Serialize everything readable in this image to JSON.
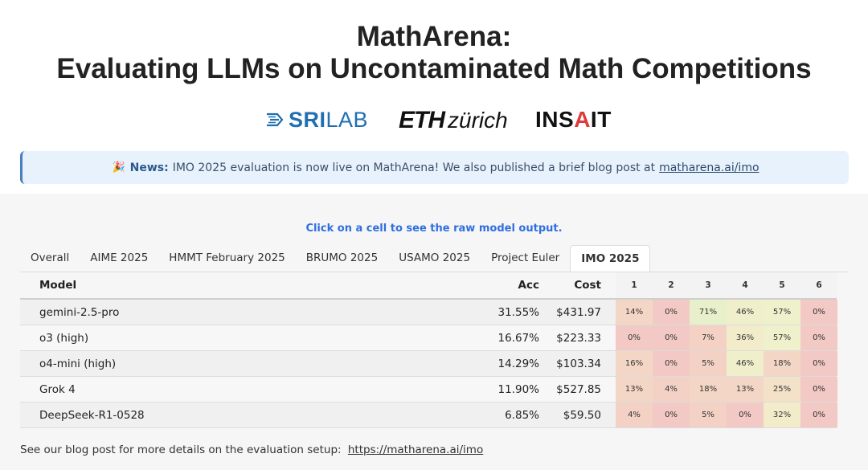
{
  "title_line1": "MathArena:",
  "title_line2": "Evaluating LLMs on Uncontaminated Math Competitions",
  "logos": {
    "sri_bold": "SRI",
    "sri_rest": "LAB",
    "eth_bold": "ETH",
    "eth_rest": "zürich",
    "insait_a": "INS",
    "insait_b": "A",
    "insait_c": "IT"
  },
  "news": {
    "emoji": "🎉",
    "label": "News:",
    "text": "IMO 2025 evaluation is now live on MathArena! We also published a brief blog post at",
    "link": "matharena.ai/imo"
  },
  "hint": "Click on a cell to see the raw model output.",
  "tabs": [
    "Overall",
    "AIME 2025",
    "HMMT February 2025",
    "BRUMO 2025",
    "USAMO 2025",
    "Project Euler",
    "IMO 2025"
  ],
  "active_tab": "IMO 2025",
  "table": {
    "headers": {
      "model": "Model",
      "acc": "Acc",
      "cost": "Cost",
      "problems": [
        "1",
        "2",
        "3",
        "4",
        "5",
        "6"
      ]
    },
    "rows": [
      {
        "model": "gemini-2.5-pro",
        "acc": "31.55%",
        "cost": "$431.97",
        "scores": [
          "14%",
          "0%",
          "71%",
          "46%",
          "57%",
          "0%"
        ]
      },
      {
        "model": "o3 (high)",
        "acc": "16.67%",
        "cost": "$223.33",
        "scores": [
          "0%",
          "0%",
          "7%",
          "36%",
          "57%",
          "0%"
        ]
      },
      {
        "model": "o4-mini (high)",
        "acc": "14.29%",
        "cost": "$103.34",
        "scores": [
          "16%",
          "0%",
          "5%",
          "46%",
          "18%",
          "0%"
        ]
      },
      {
        "model": "Grok 4",
        "acc": "11.90%",
        "cost": "$527.85",
        "scores": [
          "13%",
          "4%",
          "18%",
          "13%",
          "25%",
          "0%"
        ]
      },
      {
        "model": "DeepSeek-R1-0528",
        "acc": "6.85%",
        "cost": "$59.50",
        "scores": [
          "4%",
          "0%",
          "5%",
          "0%",
          "32%",
          "0%"
        ]
      }
    ]
  },
  "footer": {
    "text": "See our blog post for more details on the evaluation setup:",
    "link": "https://matharena.ai/imo"
  }
}
